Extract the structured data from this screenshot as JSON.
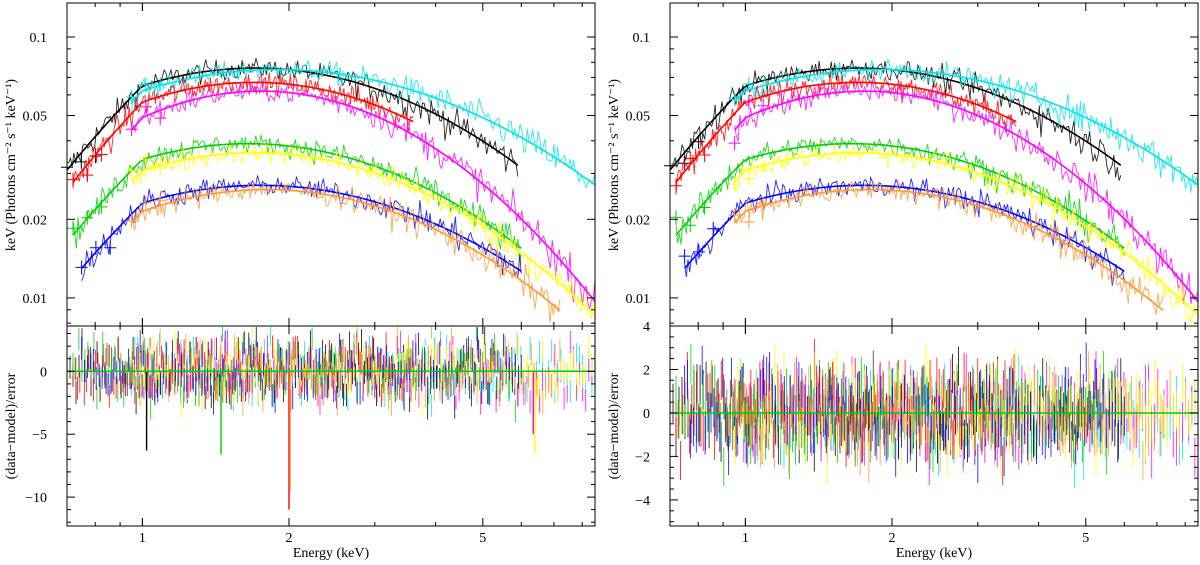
{
  "chart_data": [
    {
      "type": "line",
      "panel": "left",
      "title": "",
      "xlabel": "Energy (keV)",
      "xscale": "log",
      "xlim": [
        0.7,
        8.5
      ],
      "x_ticks": [
        1,
        2,
        5
      ],
      "x_tick_labels": [
        "1",
        "2",
        "5"
      ],
      "top": {
        "ylabel": "keV (Photons cm⁻² s⁻¹ keV⁻¹)",
        "yscale": "log",
        "ylim": [
          0.0078,
          0.135
        ],
        "y_ticks": [
          0.01,
          0.02,
          0.05,
          0.1
        ],
        "y_tick_labels": [
          "0.01",
          "0.02",
          "0.05",
          "0.1"
        ],
        "series": [
          {
            "name": "black",
            "color": "#000000",
            "start": 0.7,
            "end": 5.9,
            "peak": 0.076,
            "peak_energy": 1.7,
            "width": 0.95
          },
          {
            "name": "cyan",
            "color": "#00e5e5",
            "start": 0.95,
            "end": 8.5,
            "peak": 0.075,
            "peak_energy": 1.9,
            "width": 1.05
          },
          {
            "name": "red",
            "color": "#ff0000",
            "start": 0.72,
            "end": 3.6,
            "peak": 0.067,
            "peak_energy": 1.7,
            "width": 0.9
          },
          {
            "name": "magenta",
            "color": "#ff00ff",
            "start": 0.95,
            "end": 8.5,
            "peak": 0.062,
            "peak_energy": 1.75,
            "width": 0.82
          },
          {
            "name": "green",
            "color": "#00d000",
            "start": 0.72,
            "end": 6.0,
            "peak": 0.039,
            "peak_energy": 1.65,
            "width": 0.95
          },
          {
            "name": "yellow",
            "color": "#ffff00",
            "start": 0.95,
            "end": 8.5,
            "peak": 0.036,
            "peak_energy": 1.7,
            "width": 0.95
          },
          {
            "name": "blue",
            "color": "#0000ff",
            "start": 0.75,
            "end": 6.0,
            "peak": 0.027,
            "peak_energy": 1.75,
            "width": 1.0
          },
          {
            "name": "orange",
            "color": "#ff9933",
            "start": 0.95,
            "end": 7.2,
            "peak": 0.026,
            "peak_energy": 1.8,
            "width": 0.95
          }
        ]
      },
      "bottom": {
        "ylabel": "(data−model)/error",
        "ylim": [
          -12.3,
          3.6
        ],
        "y_ticks": [
          -10,
          -5,
          0
        ],
        "y_tick_labels": [
          "−10",
          "−5",
          "0"
        ],
        "zero_line_color": "#00d000",
        "residual_spread": 2.4,
        "outliers": [
          {
            "energy": 1.02,
            "value": -6.3,
            "color": "#000000"
          },
          {
            "energy": 1.45,
            "value": -6.6,
            "color": "#00d000"
          },
          {
            "energy": 2.0,
            "value": -11.0,
            "color": "#ff0000"
          },
          {
            "energy": 2.01,
            "value": -9.5,
            "color": "#ff9933"
          },
          {
            "energy": 6.4,
            "value": -6.5,
            "color": "#ffff00"
          },
          {
            "energy": 6.35,
            "value": -5.0,
            "color": "#ff00ff"
          }
        ]
      }
    },
    {
      "type": "line",
      "panel": "right",
      "title": "",
      "xlabel": "Energy (keV)",
      "xscale": "log",
      "xlim": [
        0.7,
        8.5
      ],
      "x_ticks": [
        1,
        2,
        5
      ],
      "x_tick_labels": [
        "1",
        "2",
        "5"
      ],
      "top": {
        "ylabel": "keV (Photons cm⁻² s⁻¹ keV⁻¹)",
        "yscale": "log",
        "ylim": [
          0.0078,
          0.135
        ],
        "y_ticks": [
          0.01,
          0.02,
          0.05,
          0.1
        ],
        "y_tick_labels": [
          "0.01",
          "0.02",
          "0.05",
          "0.1"
        ],
        "series": [
          {
            "name": "black",
            "color": "#000000",
            "start": 0.7,
            "end": 5.9,
            "peak": 0.076,
            "peak_energy": 1.7,
            "width": 0.95
          },
          {
            "name": "cyan",
            "color": "#00e5e5",
            "start": 0.95,
            "end": 8.5,
            "peak": 0.075,
            "peak_energy": 1.9,
            "width": 1.05
          },
          {
            "name": "red",
            "color": "#ff0000",
            "start": 0.72,
            "end": 3.6,
            "peak": 0.067,
            "peak_energy": 1.7,
            "width": 0.9
          },
          {
            "name": "magenta",
            "color": "#ff00ff",
            "start": 0.95,
            "end": 8.5,
            "peak": 0.062,
            "peak_energy": 1.75,
            "width": 0.82
          },
          {
            "name": "green",
            "color": "#00d000",
            "start": 0.72,
            "end": 6.0,
            "peak": 0.039,
            "peak_energy": 1.65,
            "width": 0.95
          },
          {
            "name": "yellow",
            "color": "#ffff00",
            "start": 0.95,
            "end": 8.5,
            "peak": 0.036,
            "peak_energy": 1.7,
            "width": 0.95
          },
          {
            "name": "blue",
            "color": "#0000ff",
            "start": 0.75,
            "end": 6.0,
            "peak": 0.027,
            "peak_energy": 1.75,
            "width": 1.0
          },
          {
            "name": "orange",
            "color": "#ff9933",
            "start": 0.95,
            "end": 7.2,
            "peak": 0.026,
            "peak_energy": 1.8,
            "width": 0.95
          }
        ]
      },
      "bottom": {
        "ylabel": "(data−model)/error",
        "ylim": [
          -5.2,
          4.0
        ],
        "y_ticks": [
          -4,
          -2,
          0,
          2,
          4
        ],
        "y_tick_labels": [
          "−4",
          "−2",
          "0",
          "2",
          "4"
        ],
        "zero_line_color": "#00d000",
        "residual_spread": 1.9,
        "outliers": []
      }
    }
  ]
}
